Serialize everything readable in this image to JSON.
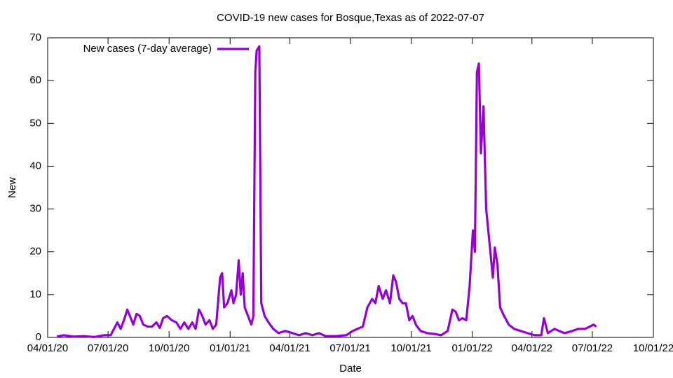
{
  "chart_data": {
    "type": "line",
    "title": "COVID-19 new cases for Bosque,Texas as of 2022-07-07",
    "x_label": "Date",
    "y_label": "New",
    "legend": "top-left",
    "x": [
      "2020-04-15",
      "2020-04-25",
      "2020-05-10",
      "2020-05-25",
      "2020-06-10",
      "2020-06-25",
      "2020-07-05",
      "2020-07-10",
      "2020-07-15",
      "2020-07-20",
      "2020-07-25",
      "2020-07-30",
      "2020-08-03",
      "2020-08-08",
      "2020-08-13",
      "2020-08-18",
      "2020-08-23",
      "2020-08-30",
      "2020-09-05",
      "2020-09-12",
      "2020-09-17",
      "2020-09-22",
      "2020-09-28",
      "2020-10-05",
      "2020-10-12",
      "2020-10-18",
      "2020-10-24",
      "2020-10-30",
      "2020-11-05",
      "2020-11-10",
      "2020-11-15",
      "2020-11-20",
      "2020-11-25",
      "2020-12-01",
      "2020-12-06",
      "2020-12-11",
      "2020-12-17",
      "2020-12-20",
      "2020-12-23",
      "2020-12-28",
      "2021-01-03",
      "2021-01-06",
      "2021-01-10",
      "2021-01-14",
      "2021-01-17",
      "2021-01-20",
      "2021-01-23",
      "2021-01-28",
      "2021-02-02",
      "2021-02-05",
      "2021-02-08",
      "2021-02-10",
      "2021-02-14",
      "2021-02-17",
      "2021-02-22",
      "2021-02-28",
      "2021-03-07",
      "2021-03-15",
      "2021-03-25",
      "2021-04-05",
      "2021-04-15",
      "2021-04-25",
      "2021-05-05",
      "2021-05-15",
      "2021-05-25",
      "2021-06-10",
      "2021-06-25",
      "2021-07-05",
      "2021-07-12",
      "2021-07-20",
      "2021-07-27",
      "2021-08-03",
      "2021-08-08",
      "2021-08-13",
      "2021-08-19",
      "2021-08-24",
      "2021-08-30",
      "2021-09-04",
      "2021-09-08",
      "2021-09-13",
      "2021-09-18",
      "2021-09-23",
      "2021-09-28",
      "2021-10-03",
      "2021-10-08",
      "2021-10-15",
      "2021-10-25",
      "2021-11-05",
      "2021-11-15",
      "2021-11-25",
      "2021-12-02",
      "2021-12-07",
      "2021-12-12",
      "2021-12-17",
      "2021-12-23",
      "2021-12-28",
      "2022-01-02",
      "2022-01-05",
      "2022-01-08",
      "2022-01-11",
      "2022-01-14",
      "2022-01-18",
      "2022-01-22",
      "2022-01-27",
      "2022-02-01",
      "2022-02-04",
      "2022-02-08",
      "2022-02-12",
      "2022-02-18",
      "2022-02-25",
      "2022-03-05",
      "2022-03-15",
      "2022-03-25",
      "2022-04-05",
      "2022-04-15",
      "2022-04-19",
      "2022-04-25",
      "2022-05-05",
      "2022-05-12",
      "2022-05-20",
      "2022-06-01",
      "2022-06-10",
      "2022-06-20",
      "2022-06-27",
      "2022-07-03",
      "2022-07-07"
    ],
    "series": [
      {
        "name": "New cases (7-day average)",
        "color": "#9400d3",
        "values": [
          0.2,
          0.5,
          0.2,
          0.3,
          0.1,
          0.5,
          0.5,
          2,
          3.5,
          2,
          4,
          6.5,
          5,
          3,
          5.5,
          5,
          3,
          2.5,
          2.5,
          3.5,
          2.2,
          4.5,
          5,
          4,
          3.5,
          2,
          3.5,
          2,
          3.5,
          2,
          6.5,
          5,
          3,
          4,
          2,
          3,
          14,
          15,
          7,
          8,
          11,
          8,
          10,
          18,
          10,
          15,
          7,
          5,
          3,
          5,
          62,
          67,
          68,
          8,
          5,
          3.5,
          2,
          1,
          1.5,
          1,
          0.5,
          1,
          0.5,
          1,
          0.3,
          0.3,
          0.5,
          1.5,
          2,
          2.5,
          7,
          9,
          8,
          12,
          9,
          11,
          8,
          14.5,
          13,
          9,
          8,
          8,
          4,
          5,
          3,
          1.5,
          1,
          0.8,
          0.5,
          1.5,
          6.5,
          6,
          4,
          4.5,
          4,
          12,
          25,
          20,
          62,
          64,
          43,
          54,
          30,
          22,
          14,
          21,
          17,
          7,
          5,
          3,
          2,
          1.5,
          1,
          0.5,
          0.5,
          4.5,
          1,
          2,
          1.5,
          1,
          1.5,
          2,
          2,
          2.5,
          3,
          2.5
        ]
      }
    ],
    "xlim": [
      "2020-04-01",
      "2022-10-01"
    ],
    "xticks": [
      {
        "value": "2020-04-01",
        "label": "04/01/20"
      },
      {
        "value": "2020-07-01",
        "label": "07/01/20"
      },
      {
        "value": "2020-10-01",
        "label": "10/01/20"
      },
      {
        "value": "2021-01-01",
        "label": "01/01/21"
      },
      {
        "value": "2021-04-01",
        "label": "04/01/21"
      },
      {
        "value": "2021-07-01",
        "label": "07/01/21"
      },
      {
        "value": "2021-10-01",
        "label": "10/01/21"
      },
      {
        "value": "2022-01-01",
        "label": "01/01/22"
      },
      {
        "value": "2022-04-01",
        "label": "04/01/22"
      },
      {
        "value": "2022-07-01",
        "label": "07/01/22"
      },
      {
        "value": "2022-10-01",
        "label": "10/01/22"
      }
    ],
    "ylim": [
      0,
      70
    ],
    "yticks": [
      0,
      10,
      20,
      30,
      40,
      50,
      60,
      70
    ]
  }
}
